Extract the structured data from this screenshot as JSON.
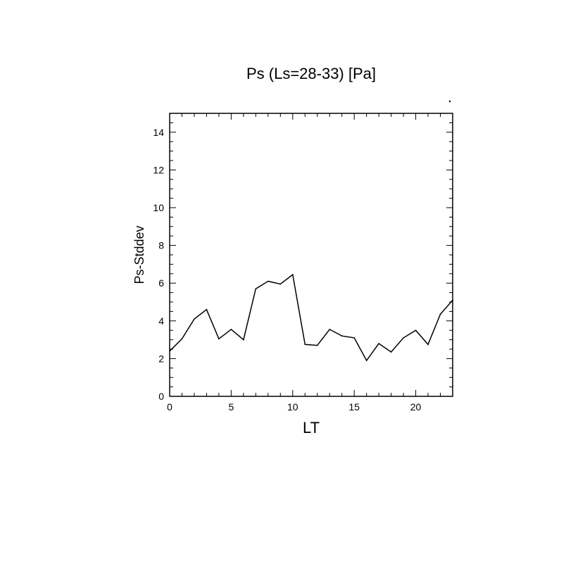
{
  "chart_data": {
    "type": "line",
    "title": "Ps (Ls=28-33) [Pa]",
    "xlabel": "LT",
    "ylabel": "Ps-Stddev",
    "xlim": [
      0,
      23
    ],
    "ylim": [
      0,
      15
    ],
    "xticks": [
      0,
      5,
      10,
      15,
      20
    ],
    "yticks": [
      0,
      2,
      4,
      6,
      8,
      10,
      12,
      14
    ],
    "grid": false,
    "line_color": "#000000",
    "series": [
      {
        "x": [
          0,
          1,
          2,
          3,
          4,
          5,
          6,
          7,
          8,
          9,
          10,
          11,
          12,
          13,
          14,
          15,
          16,
          17,
          18,
          19,
          20,
          21,
          22,
          23
        ],
        "values": [
          2.4,
          3.05,
          4.1,
          4.6,
          3.05,
          3.55,
          3.0,
          5.7,
          6.1,
          5.95,
          6.45,
          2.75,
          2.7,
          3.55,
          3.2,
          3.1,
          1.9,
          2.8,
          2.35,
          3.1,
          3.5,
          2.75,
          4.35,
          5.1
        ]
      }
    ]
  }
}
